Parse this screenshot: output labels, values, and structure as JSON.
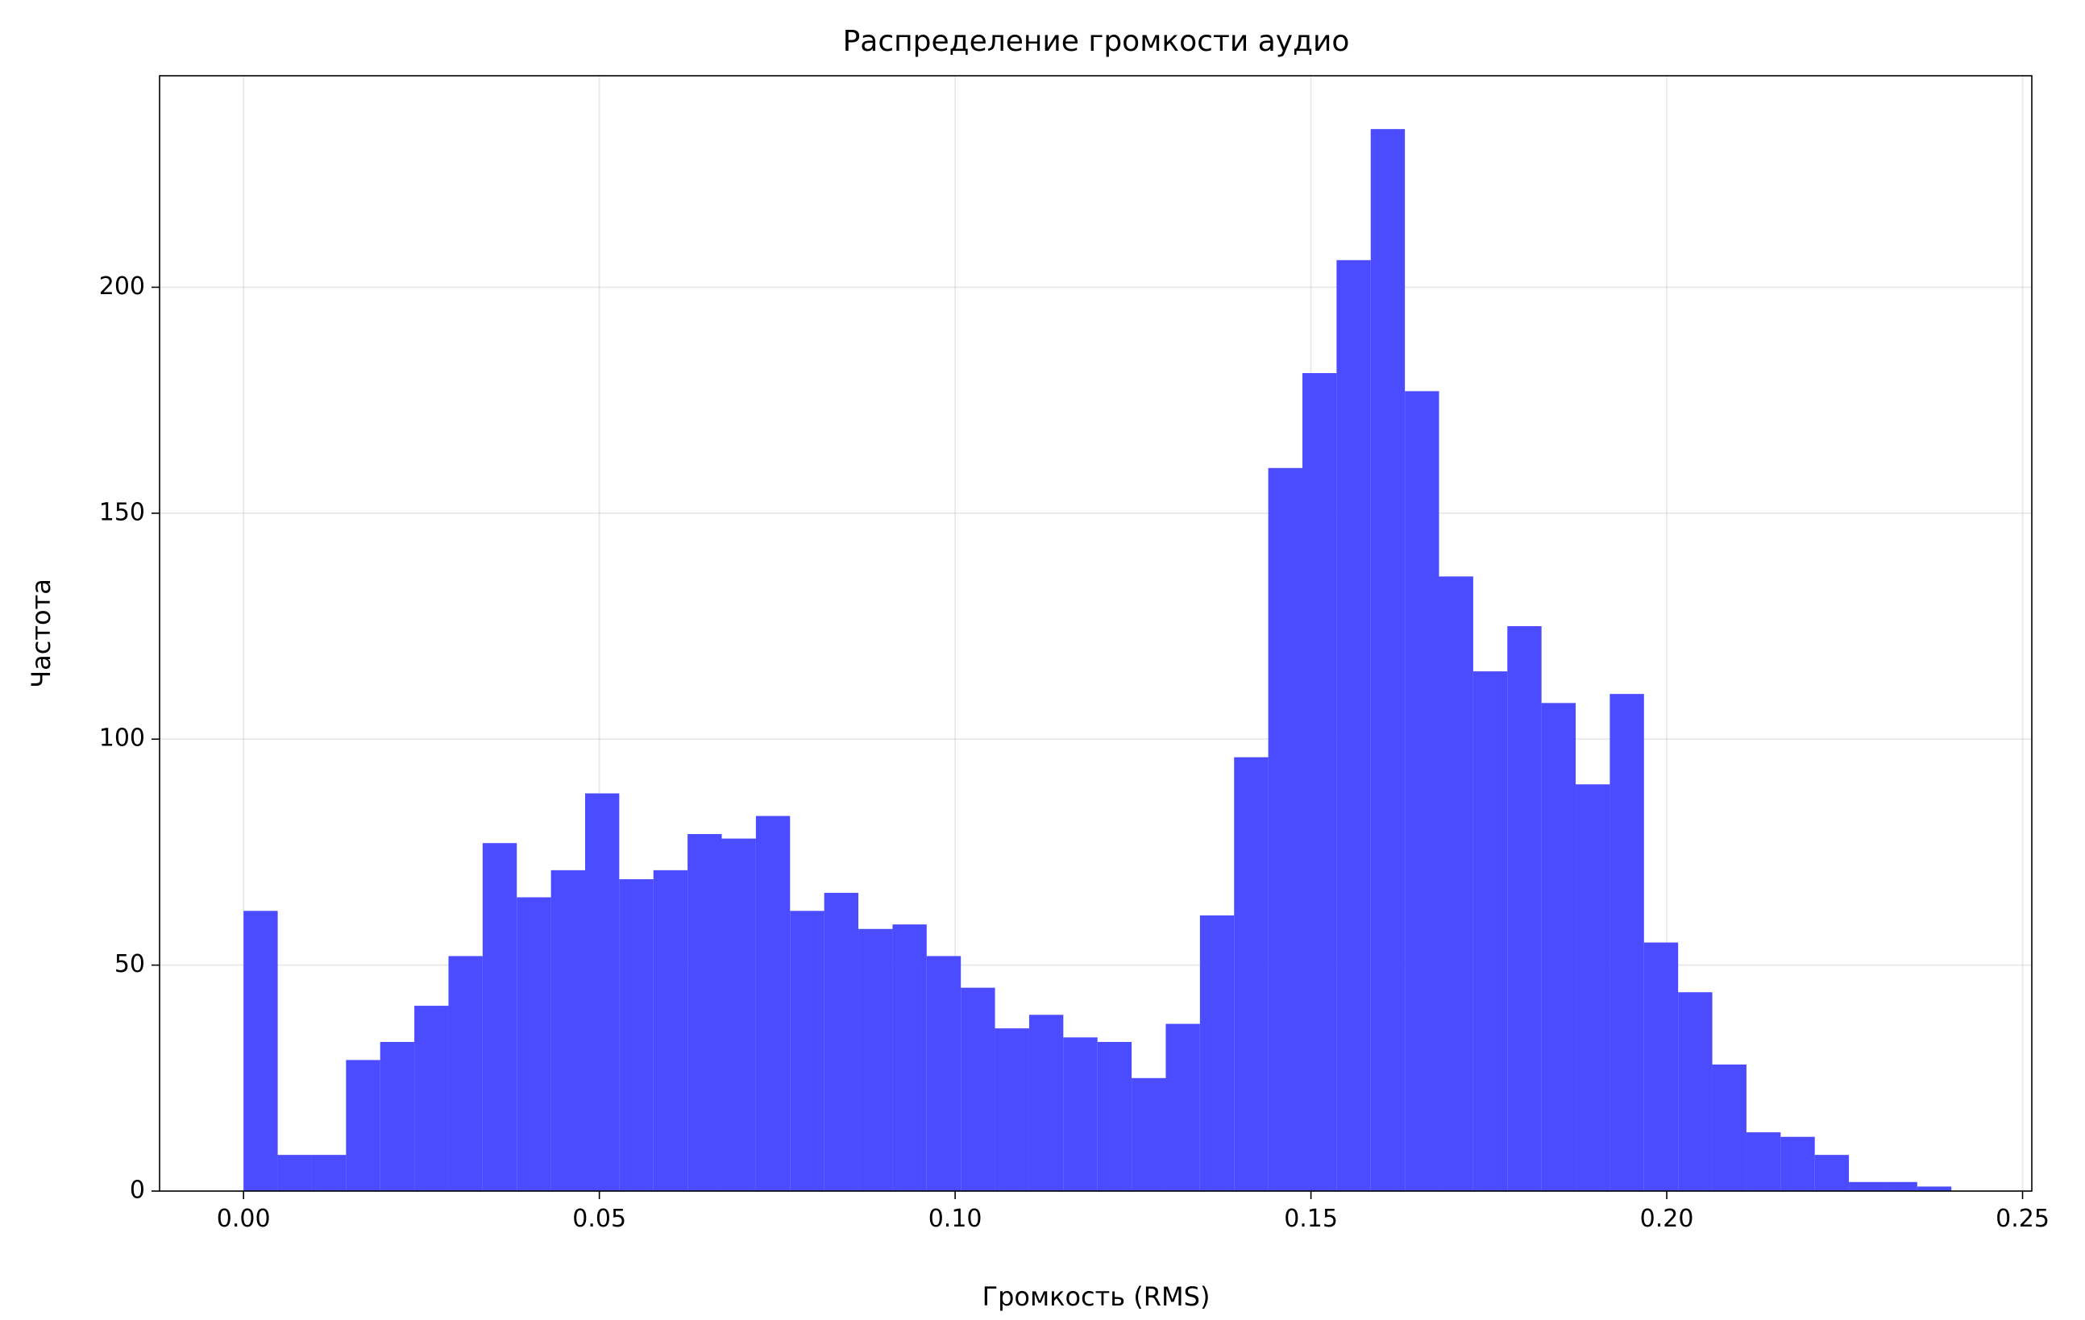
{
  "chart_data": {
    "type": "histogram",
    "title": "Распределение громкости аудио",
    "x_label": "Громкость (RMS)",
    "y_label": "Частота",
    "color": "#4b4bff",
    "grid": true,
    "bins": [
      0,
      0.0048,
      0.0096,
      0.0144,
      0.0192,
      0.024,
      0.0288,
      0.0336,
      0.0384,
      0.0432,
      0.048,
      0.0528,
      0.0576,
      0.0624,
      0.0672,
      0.072,
      0.0768,
      0.0816,
      0.0864,
      0.0912,
      0.096,
      0.1008,
      0.1056,
      0.1104,
      0.1152,
      0.12,
      0.1248,
      0.1296,
      0.1344,
      0.1392,
      0.144,
      0.1488,
      0.1536,
      0.1584,
      0.1632,
      0.168,
      0.1728,
      0.1776,
      0.1824,
      0.1872,
      0.192,
      0.1968,
      0.2016,
      0.2064,
      0.2112,
      0.216,
      0.2208,
      0.2256,
      0.2304,
      0.2352,
      0.24
    ],
    "counts": [
      62,
      8,
      8,
      29,
      33,
      41,
      52,
      77,
      65,
      71,
      88,
      69,
      71,
      79,
      78,
      83,
      62,
      66,
      58,
      59,
      52,
      45,
      36,
      39,
      34,
      33,
      25,
      37,
      61,
      96,
      160,
      181,
      206,
      235,
      177,
      136,
      115,
      125,
      108,
      90,
      110,
      55,
      44,
      28,
      13,
      12,
      8,
      2,
      2,
      1
    ],
    "xlim": [
      -0.0118,
      0.2513
    ],
    "ylim": [
      0,
      246.8
    ],
    "xticks": [
      {
        "value": 0,
        "label": "0.00"
      },
      {
        "value": 0.05,
        "label": "0.05"
      },
      {
        "value": 0.1,
        "label": "0.10"
      },
      {
        "value": 0.15,
        "label": "0.15"
      },
      {
        "value": 0.2,
        "label": "0.20"
      },
      {
        "value": 0.25,
        "label": "0.25"
      }
    ],
    "yticks": [
      0,
      50,
      100,
      150,
      200
    ]
  }
}
